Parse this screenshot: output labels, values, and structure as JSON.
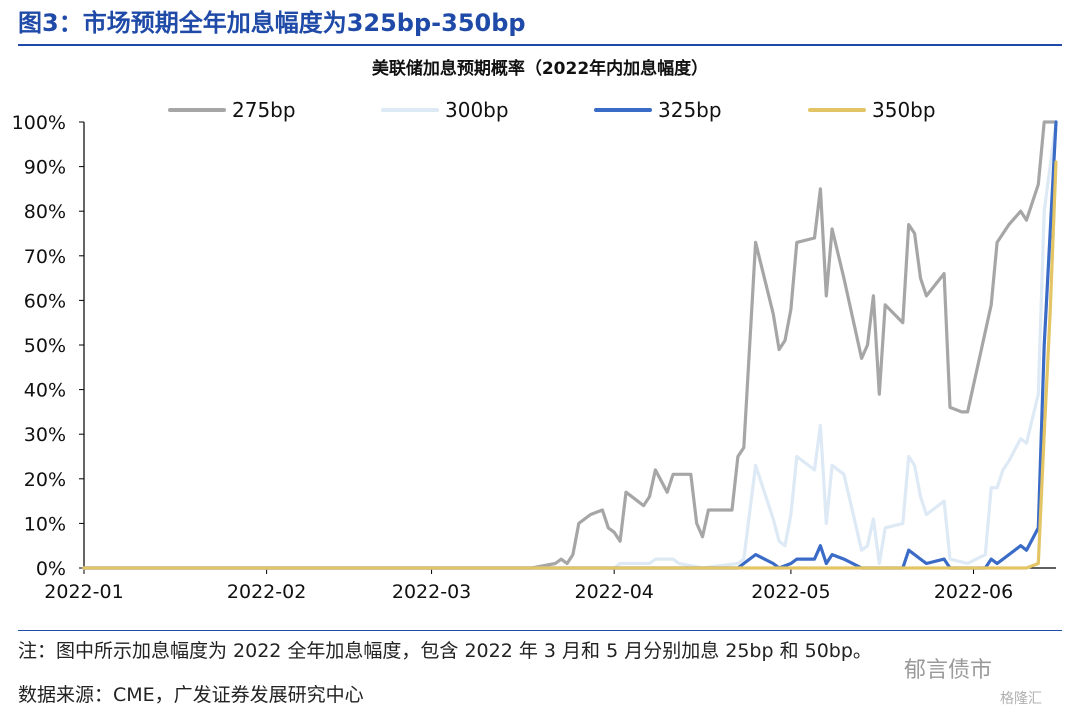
{
  "figure": {
    "title": "图3：市场预期全年加息幅度为325bp-350bp",
    "note": "注：图中所示加息幅度为 2022 全年加息幅度，包含 2022 年 3 月和 5 月分别加息 25bp 和 50bp。",
    "source": "数据来源：CME，广发证券发展研究中心",
    "watermark_primary": "郁言债市",
    "watermark_secondary": "格隆汇"
  },
  "colors": {
    "accent": "#1f4aa8",
    "s275": "#a6a6a6",
    "s300": "#dde9f5",
    "s325": "#3a6bc6",
    "s350": "#e3c565"
  },
  "chart_data": {
    "type": "line",
    "title": "美联储加息预期概率（2022年内加息幅度）",
    "xlabel": "",
    "ylabel": "",
    "ylim": [
      0,
      100
    ],
    "yticks": [
      "0%",
      "10%",
      "20%",
      "30%",
      "40%",
      "50%",
      "60%",
      "70%",
      "80%",
      "90%",
      "100%"
    ],
    "x_ticks": [
      "2022-01",
      "2022-02",
      "2022-03",
      "2022-04",
      "2022-05",
      "2022-06"
    ],
    "xlim": [
      "2022-01-01",
      "2022-06-15"
    ],
    "legend_position": "top",
    "series": [
      {
        "name": "275bp",
        "color": "#a6a6a6",
        "points": [
          [
            "2022-01-01",
            0
          ],
          [
            "2022-03-18",
            0
          ],
          [
            "2022-03-22",
            1
          ],
          [
            "2022-03-23",
            2
          ],
          [
            "2022-03-24",
            1
          ],
          [
            "2022-03-25",
            3
          ],
          [
            "2022-03-26",
            10
          ],
          [
            "2022-03-28",
            12
          ],
          [
            "2022-03-30",
            13
          ],
          [
            "2022-03-31",
            9
          ],
          [
            "2022-04-01",
            8
          ],
          [
            "2022-04-02",
            6
          ],
          [
            "2022-04-03",
            17
          ],
          [
            "2022-04-06",
            14
          ],
          [
            "2022-04-07",
            16
          ],
          [
            "2022-04-08",
            22
          ],
          [
            "2022-04-10",
            17
          ],
          [
            "2022-04-11",
            21
          ],
          [
            "2022-04-14",
            21
          ],
          [
            "2022-04-15",
            10
          ],
          [
            "2022-04-16",
            7
          ],
          [
            "2022-04-17",
            13
          ],
          [
            "2022-04-21",
            13
          ],
          [
            "2022-04-22",
            25
          ],
          [
            "2022-04-23",
            27
          ],
          [
            "2022-04-25",
            73
          ],
          [
            "2022-04-28",
            57
          ],
          [
            "2022-04-29",
            49
          ],
          [
            "2022-04-30",
            51
          ],
          [
            "2022-05-01",
            58
          ],
          [
            "2022-05-02",
            73
          ],
          [
            "2022-05-05",
            74
          ],
          [
            "2022-05-06",
            85
          ],
          [
            "2022-05-07",
            61
          ],
          [
            "2022-05-08",
            76
          ],
          [
            "2022-05-10",
            65
          ],
          [
            "2022-05-13",
            47
          ],
          [
            "2022-05-14",
            50
          ],
          [
            "2022-05-15",
            61
          ],
          [
            "2022-05-16",
            39
          ],
          [
            "2022-05-17",
            59
          ],
          [
            "2022-05-20",
            55
          ],
          [
            "2022-05-21",
            77
          ],
          [
            "2022-05-22",
            75
          ],
          [
            "2022-05-23",
            65
          ],
          [
            "2022-05-24",
            61
          ],
          [
            "2022-05-27",
            66
          ],
          [
            "2022-05-28",
            36
          ],
          [
            "2022-05-30",
            35
          ],
          [
            "2022-05-31",
            35
          ],
          [
            "2022-06-03",
            53
          ],
          [
            "2022-06-04",
            59
          ],
          [
            "2022-06-05",
            73
          ],
          [
            "2022-06-06",
            75
          ],
          [
            "2022-06-07",
            77
          ],
          [
            "2022-06-09",
            80
          ],
          [
            "2022-06-10",
            78
          ],
          [
            "2022-06-11",
            82
          ],
          [
            "2022-06-12",
            86
          ],
          [
            "2022-06-13",
            100
          ],
          [
            "2022-06-15",
            100
          ]
        ]
      },
      {
        "name": "300bp",
        "color": "#dde9f5",
        "points": [
          [
            "2022-01-01",
            0
          ],
          [
            "2022-04-01",
            0
          ],
          [
            "2022-04-02",
            1
          ],
          [
            "2022-04-07",
            1
          ],
          [
            "2022-04-08",
            2
          ],
          [
            "2022-04-11",
            2
          ],
          [
            "2022-04-12",
            1
          ],
          [
            "2022-04-16",
            0
          ],
          [
            "2022-04-22",
            1
          ],
          [
            "2022-04-23",
            2
          ],
          [
            "2022-04-25",
            23
          ],
          [
            "2022-04-28",
            11
          ],
          [
            "2022-04-29",
            6
          ],
          [
            "2022-04-30",
            5
          ],
          [
            "2022-05-01",
            12
          ],
          [
            "2022-05-02",
            25
          ],
          [
            "2022-05-05",
            22
          ],
          [
            "2022-05-06",
            32
          ],
          [
            "2022-05-07",
            10
          ],
          [
            "2022-05-08",
            23
          ],
          [
            "2022-05-10",
            21
          ],
          [
            "2022-05-13",
            4
          ],
          [
            "2022-05-14",
            5
          ],
          [
            "2022-05-15",
            11
          ],
          [
            "2022-05-16",
            1
          ],
          [
            "2022-05-17",
            9
          ],
          [
            "2022-05-20",
            10
          ],
          [
            "2022-05-21",
            25
          ],
          [
            "2022-05-22",
            23
          ],
          [
            "2022-05-23",
            16
          ],
          [
            "2022-05-24",
            12
          ],
          [
            "2022-05-27",
            15
          ],
          [
            "2022-05-28",
            2
          ],
          [
            "2022-05-31",
            1
          ],
          [
            "2022-06-03",
            3
          ],
          [
            "2022-06-04",
            18
          ],
          [
            "2022-06-05",
            18
          ],
          [
            "2022-06-06",
            22
          ],
          [
            "2022-06-07",
            24
          ],
          [
            "2022-06-09",
            29
          ],
          [
            "2022-06-10",
            28
          ],
          [
            "2022-06-12",
            39
          ],
          [
            "2022-06-13",
            80
          ],
          [
            "2022-06-14",
            90
          ],
          [
            "2022-06-15",
            100
          ]
        ]
      },
      {
        "name": "325bp",
        "color": "#3a6bc6",
        "points": [
          [
            "2022-01-01",
            0
          ],
          [
            "2022-04-22",
            0
          ],
          [
            "2022-04-23",
            1
          ],
          [
            "2022-04-25",
            3
          ],
          [
            "2022-04-28",
            1
          ],
          [
            "2022-04-29",
            0
          ],
          [
            "2022-05-01",
            1
          ],
          [
            "2022-05-02",
            2
          ],
          [
            "2022-05-05",
            2
          ],
          [
            "2022-05-06",
            5
          ],
          [
            "2022-05-07",
            1
          ],
          [
            "2022-05-08",
            3
          ],
          [
            "2022-05-10",
            2
          ],
          [
            "2022-05-13",
            0
          ],
          [
            "2022-05-16",
            0
          ],
          [
            "2022-05-20",
            0
          ],
          [
            "2022-05-21",
            4
          ],
          [
            "2022-05-22",
            3
          ],
          [
            "2022-05-23",
            2
          ],
          [
            "2022-05-24",
            1
          ],
          [
            "2022-05-27",
            2
          ],
          [
            "2022-05-28",
            0
          ],
          [
            "2022-06-03",
            0
          ],
          [
            "2022-06-04",
            2
          ],
          [
            "2022-06-05",
            1
          ],
          [
            "2022-06-06",
            2
          ],
          [
            "2022-06-09",
            5
          ],
          [
            "2022-06-10",
            4
          ],
          [
            "2022-06-12",
            9
          ],
          [
            "2022-06-13",
            50
          ],
          [
            "2022-06-14",
            75
          ],
          [
            "2022-06-15",
            100
          ]
        ]
      },
      {
        "name": "350bp",
        "color": "#e3c565",
        "points": [
          [
            "2022-01-01",
            0
          ],
          [
            "2022-06-10",
            0
          ],
          [
            "2022-06-12",
            1
          ],
          [
            "2022-06-13",
            30
          ],
          [
            "2022-06-14",
            57
          ],
          [
            "2022-06-15",
            91
          ]
        ]
      }
    ]
  }
}
